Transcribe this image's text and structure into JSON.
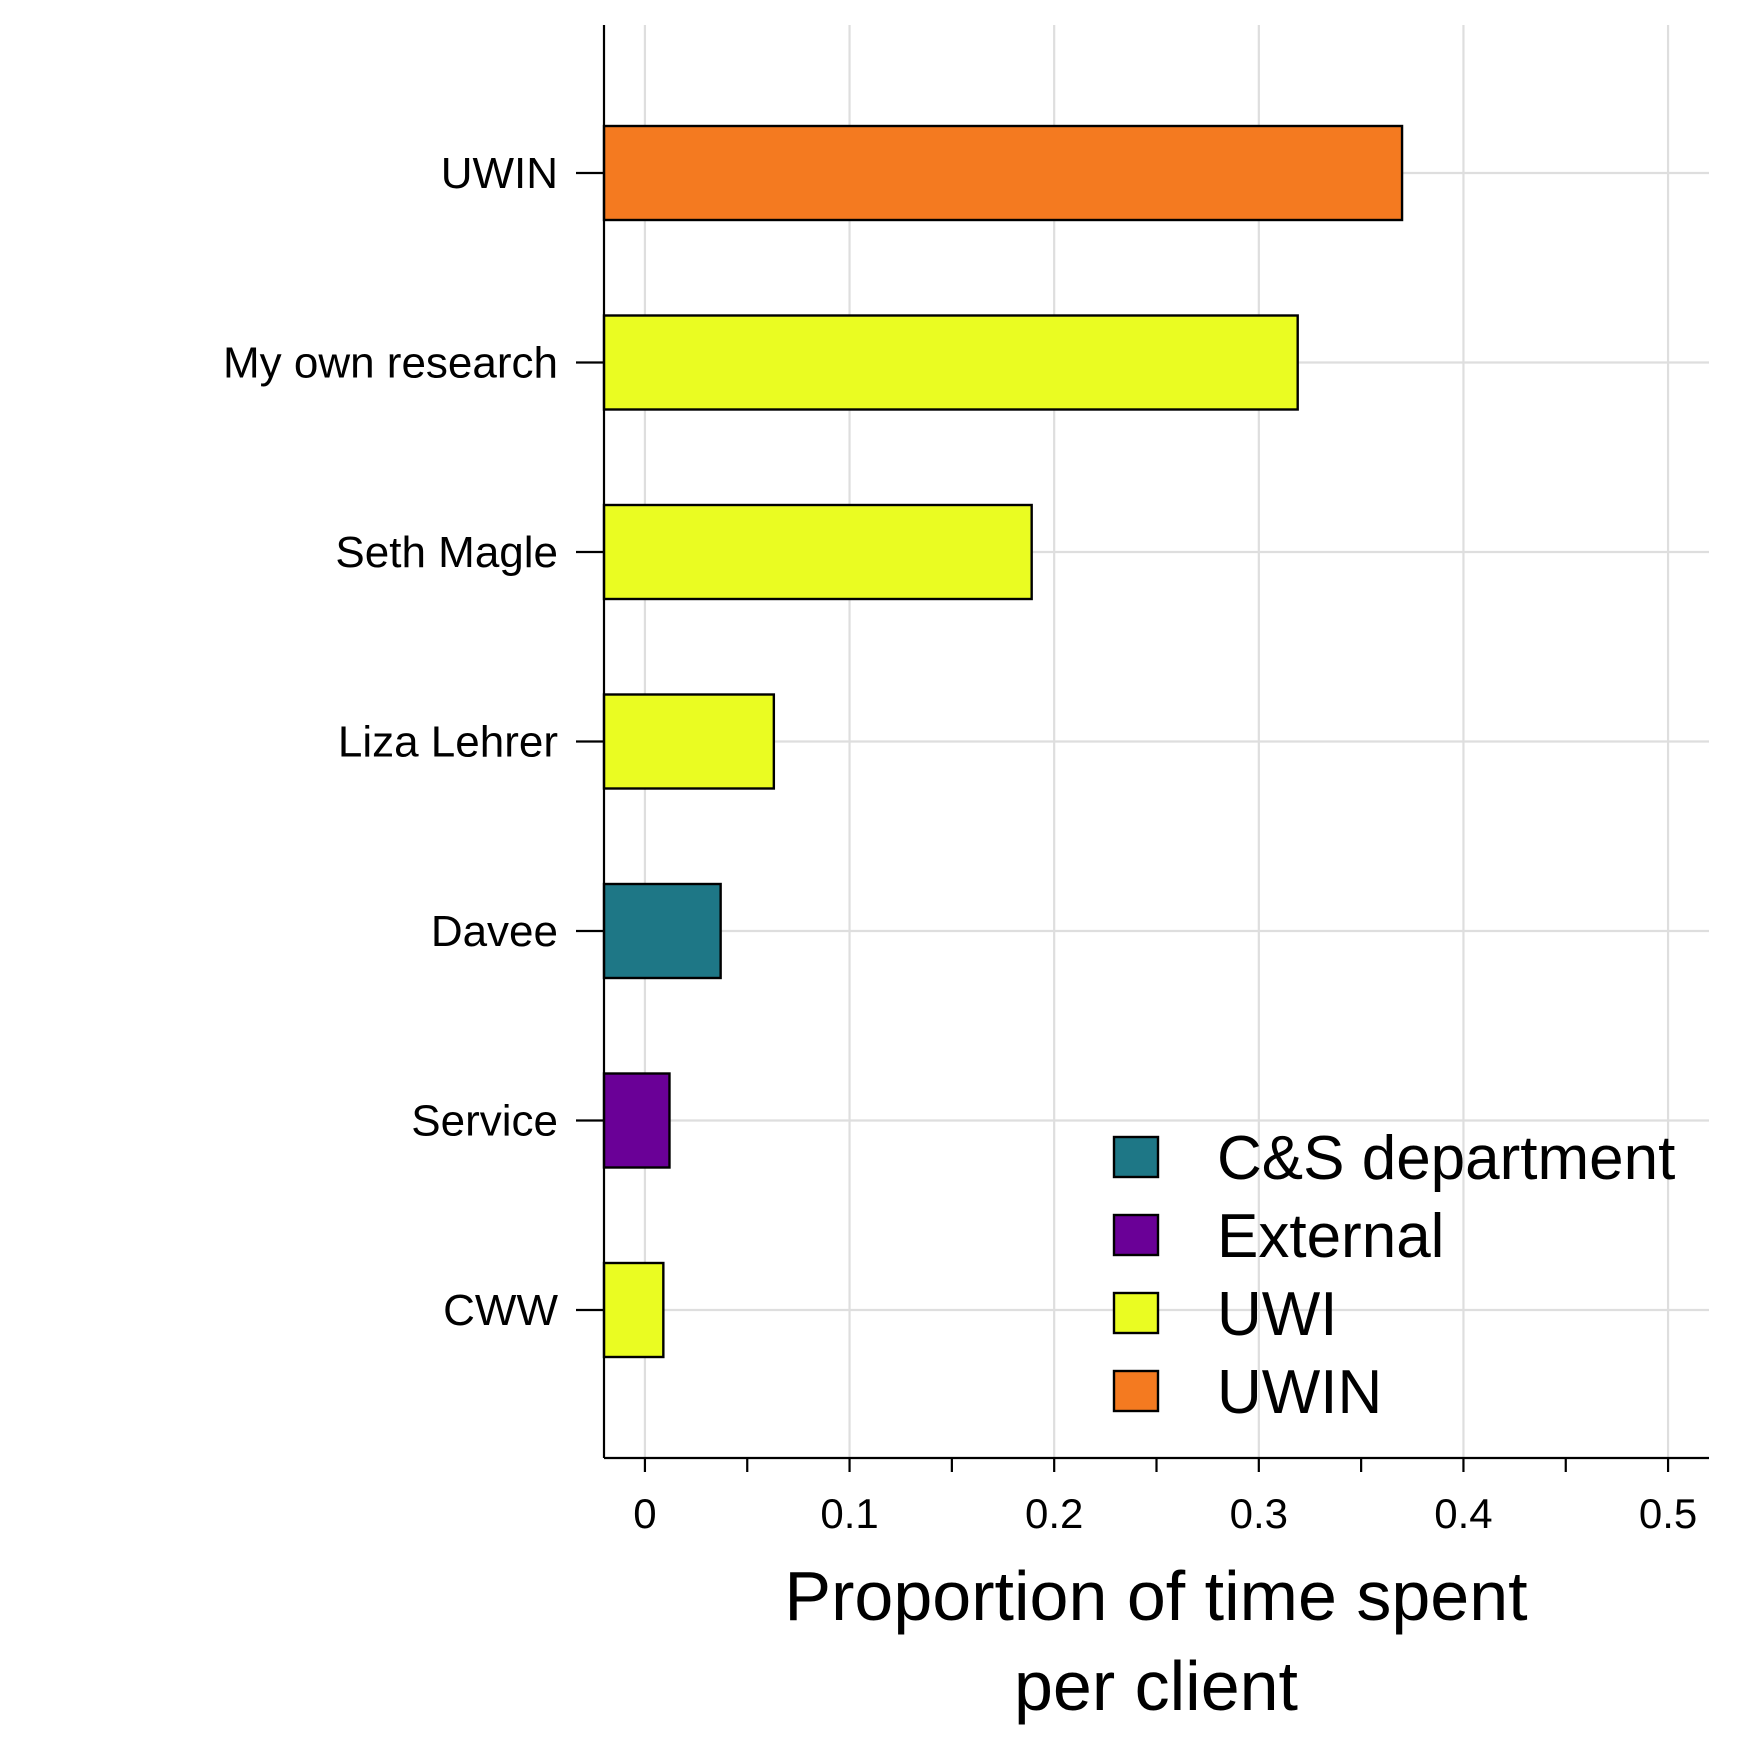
{
  "chart_data": {
    "type": "bar",
    "orientation": "horizontal",
    "categories": [
      "UWIN",
      "My own research",
      "Seth Magle",
      "Liza Lehrer",
      "Davee",
      "Service",
      "CWW"
    ],
    "values": [
      0.37,
      0.319,
      0.189,
      0.063,
      0.037,
      0.012,
      0.009
    ],
    "groups": [
      "UWIN",
      "UWI",
      "UWI",
      "UWI",
      "C&S department",
      "External",
      "UWI"
    ],
    "xlabel": [
      "Proportion of time spent",
      "per client"
    ],
    "ylabel": "",
    "xlim": [
      -0.02,
      0.52
    ],
    "xticks": [
      "0",
      "0.1",
      "0.2",
      "0.3",
      "0.4",
      "0.5"
    ],
    "xtick_values": [
      0,
      0.1,
      0.2,
      0.3,
      0.4,
      0.5
    ],
    "minor_xtick_values": [
      0.05,
      0.15,
      0.25,
      0.35,
      0.45
    ],
    "grid": true,
    "legend": {
      "position": "bottom-right",
      "entries": [
        {
          "label": "C&S department",
          "color": "#1e7786"
        },
        {
          "label": "External",
          "color": "#6a0097"
        },
        {
          "label": "UWI",
          "color": "#eafc22"
        },
        {
          "label": "UWIN",
          "color": "#f47a20"
        }
      ]
    }
  }
}
